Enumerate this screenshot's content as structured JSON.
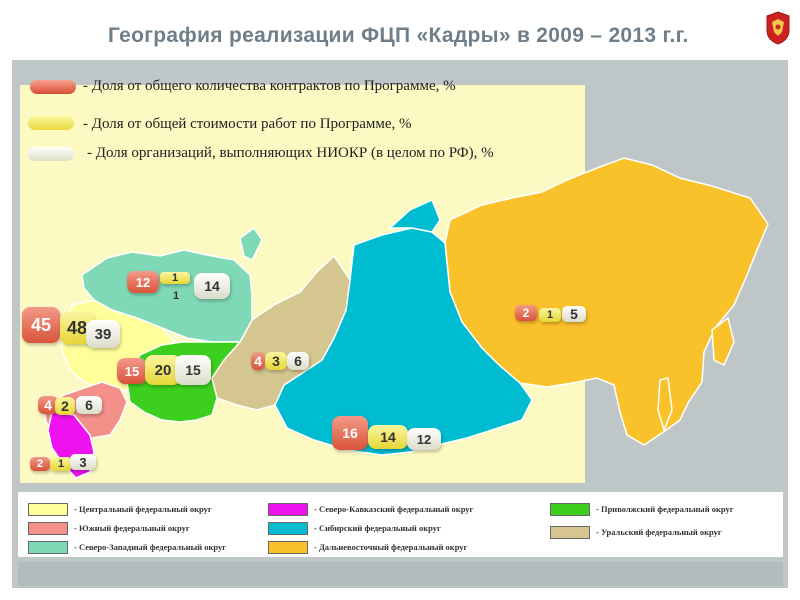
{
  "title": "География реализации ФЦП «Кадры» в 2009 – 2013 г.г.",
  "emblem_icon": "russian-coat-of-arms-icon",
  "indicators": [
    {
      "label": "- Доля от общего количества контрактов по Программе, %",
      "color": "#e8604a"
    },
    {
      "label": "- Доля от общей стоимости работ по Программе, %",
      "color": "#f2e860"
    },
    {
      "label": "- Доля организаций, выполняющих НИОКР  (в целом по РФ), %",
      "color": "#f1f1e4"
    }
  ],
  "districts": [
    {
      "id": "central",
      "name": "- Центральный федеральный округ",
      "color": "#ffff99",
      "values": [
        "45",
        "48",
        "39"
      ]
    },
    {
      "id": "south",
      "name": "- Южный федеральный округ",
      "color": "#f4908a",
      "values": [
        "4",
        "2",
        "6"
      ]
    },
    {
      "id": "northwest",
      "name": "- Северо-Западный федеральный округ",
      "color": "#7fd8b6",
      "values": [
        "12",
        "1",
        "14"
      ],
      "values_extra": "1"
    },
    {
      "id": "northcaucasus",
      "name": "- Северо-Кавказский федеральный округ",
      "color": "#ee12ee",
      "values": [
        "2",
        "1",
        "3"
      ]
    },
    {
      "id": "siberian",
      "name": "- Сибирский федеральный округ",
      "color": "#00bcd1",
      "values": [
        "16",
        "14",
        "12"
      ]
    },
    {
      "id": "fareast",
      "name": "- Дальневосточный федеральный округ",
      "color": "#f9c12a",
      "values": [
        "2",
        "1",
        "5"
      ]
    },
    {
      "id": "volga",
      "name": "- Приволжский федеральный округ",
      "color": "#3ccf1e",
      "values": [
        "15",
        "20",
        "15"
      ]
    },
    {
      "id": "ural",
      "name": "- Уральский федеральный округ",
      "color": "#d4c68e",
      "values": [
        "4",
        "3",
        "6"
      ]
    }
  ]
}
